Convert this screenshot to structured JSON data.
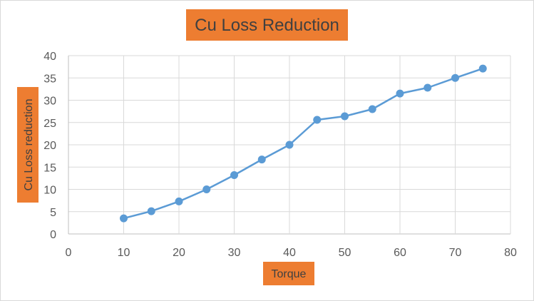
{
  "chart_data": {
    "type": "scatter",
    "title": "Cu Loss Reduction",
    "xlabel": "Torque",
    "ylabel": "Cu Loss reduction",
    "xlim": [
      0,
      80
    ],
    "ylim": [
      0,
      40
    ],
    "xticks": [
      0,
      10,
      20,
      30,
      40,
      50,
      60,
      70,
      80
    ],
    "yticks": [
      0,
      5,
      10,
      15,
      20,
      25,
      30,
      35,
      40
    ],
    "grid": true,
    "series": [
      {
        "color": "#5b9bd5",
        "points": [
          {
            "x": 10,
            "y": 3.5
          },
          {
            "x": 15,
            "y": 5.1
          },
          {
            "x": 20,
            "y": 7.3
          },
          {
            "x": 25,
            "y": 10.0
          },
          {
            "x": 30,
            "y": 13.2
          },
          {
            "x": 35,
            "y": 16.7
          },
          {
            "x": 40,
            "y": 20.0
          },
          {
            "x": 45,
            "y": 25.6
          },
          {
            "x": 50,
            "y": 26.4
          },
          {
            "x": 55,
            "y": 28.0
          },
          {
            "x": 60,
            "y": 31.5
          },
          {
            "x": 65,
            "y": 32.8
          },
          {
            "x": 70,
            "y": 35.0
          },
          {
            "x": 75,
            "y": 37.1
          }
        ]
      }
    ],
    "label_box_color": "#ed7d31"
  }
}
